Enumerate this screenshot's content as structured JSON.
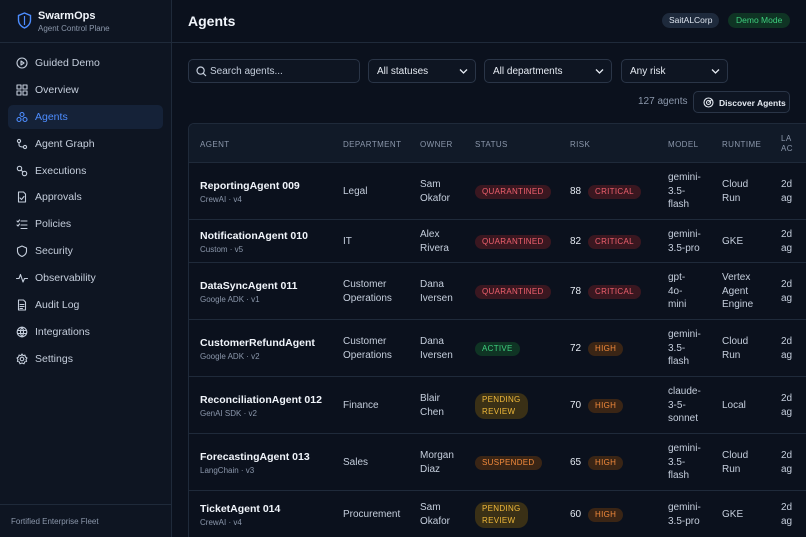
{
  "brand": {
    "name": "SwarmOps",
    "subtitle": "Agent Control Plane"
  },
  "nav": [
    {
      "label": "Guided Demo",
      "icon": "play-circle-icon",
      "active": false
    },
    {
      "label": "Overview",
      "icon": "grid-icon",
      "active": false
    },
    {
      "label": "Agents",
      "icon": "agents-icon",
      "active": true
    },
    {
      "label": "Agent Graph",
      "icon": "graph-icon",
      "active": false
    },
    {
      "label": "Executions",
      "icon": "executions-icon",
      "active": false
    },
    {
      "label": "Approvals",
      "icon": "approvals-icon",
      "active": false
    },
    {
      "label": "Policies",
      "icon": "policies-icon",
      "active": false
    },
    {
      "label": "Security",
      "icon": "shield-icon",
      "active": false
    },
    {
      "label": "Observability",
      "icon": "pulse-icon",
      "active": false
    },
    {
      "label": "Audit Log",
      "icon": "document-icon",
      "active": false
    },
    {
      "label": "Integrations",
      "icon": "integrations-icon",
      "active": false
    },
    {
      "label": "Settings",
      "icon": "gear-icon",
      "active": false
    }
  ],
  "sidebar_footer": "Fortified Enterprise Fleet",
  "header": {
    "title": "Agents",
    "org": "SaitALCorp",
    "mode": "Demo Mode"
  },
  "filters": {
    "search_placeholder": "Search agents...",
    "status": "All statuses",
    "department": "All departments",
    "risk": "Any risk"
  },
  "count_text": "127 agents",
  "discover_label": "Discover Agents",
  "table": {
    "headers": {
      "agent": "AGENT",
      "department": "DEPARTMENT",
      "owner": "OWNER",
      "status": "STATUS",
      "risk": "RISK",
      "model": "MODEL",
      "runtime": "RUNTIME",
      "last_active": "LA\nAC"
    },
    "rows": [
      {
        "name": "ReportingAgent 009",
        "meta": "CrewAI · v4",
        "department": "Legal",
        "owner": "Sam\nOkafor",
        "status": "QUARANTINED",
        "status_kind": "quarantined",
        "risk_score": 88,
        "risk_level": "CRITICAL",
        "risk_kind": "critical",
        "model": "gemini-\n3.5-\nflash",
        "runtime": "Cloud\nRun",
        "last_active": "2d\nag"
      },
      {
        "name": "NotificationAgent 010",
        "meta": "Custom · v5",
        "department": "IT",
        "owner": "Alex\nRivera",
        "status": "QUARANTINED",
        "status_kind": "quarantined",
        "risk_score": 82,
        "risk_level": "CRITICAL",
        "risk_kind": "critical",
        "model": "gemini-\n3.5-pro",
        "runtime": "GKE",
        "last_active": "2d\nag"
      },
      {
        "name": "DataSyncAgent 011",
        "meta": "Google ADK · v1",
        "department": "Customer\nOperations",
        "owner": "Dana\nIversen",
        "status": "QUARANTINED",
        "status_kind": "quarantined",
        "risk_score": 78,
        "risk_level": "CRITICAL",
        "risk_kind": "critical",
        "model": "gpt-\n4o-\nmini",
        "runtime": "Vertex\nAgent\nEngine",
        "last_active": "2d\nag"
      },
      {
        "name": "CustomerRefundAgent",
        "meta": "Google ADK · v2",
        "department": "Customer\nOperations",
        "owner": "Dana\nIversen",
        "status": "ACTIVE",
        "status_kind": "active",
        "risk_score": 72,
        "risk_level": "HIGH",
        "risk_kind": "high",
        "model": "gemini-\n3.5-\nflash",
        "runtime": "Cloud\nRun",
        "last_active": "2d\nag"
      },
      {
        "name": "ReconciliationAgent 012",
        "meta": "GenAI SDK · v2",
        "department": "Finance",
        "owner": "Blair\nChen",
        "status": "PENDING\nREVIEW",
        "status_kind": "pending",
        "risk_score": 70,
        "risk_level": "HIGH",
        "risk_kind": "high",
        "model": "claude-\n3-5-\nsonnet",
        "runtime": "Local",
        "last_active": "2d\nag"
      },
      {
        "name": "ForecastingAgent 013",
        "meta": "LangChain · v3",
        "department": "Sales",
        "owner": "Morgan\nDiaz",
        "status": "SUSPENDED",
        "status_kind": "suspended",
        "risk_score": 65,
        "risk_level": "HIGH",
        "risk_kind": "high",
        "model": "gemini-\n3.5-\nflash",
        "runtime": "Cloud\nRun",
        "last_active": "2d\nag"
      },
      {
        "name": "TicketAgent 014",
        "meta": "CrewAI · v4",
        "department": "Procurement",
        "owner": "Sam\nOkafor",
        "status": "PENDING\nREVIEW",
        "status_kind": "pending",
        "risk_score": 60,
        "risk_level": "HIGH",
        "risk_kind": "high",
        "model": "gemini-\n3.5-pro",
        "runtime": "GKE",
        "last_active": "2d\nag"
      }
    ]
  }
}
